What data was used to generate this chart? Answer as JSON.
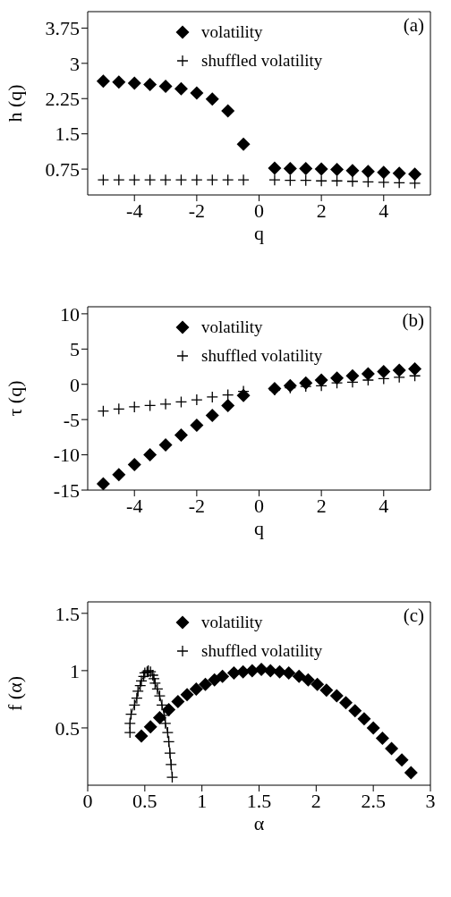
{
  "chart_data": [
    {
      "type": "scatter",
      "xlabel": "q",
      "ylabel": "h (q)",
      "annotations": [
        "(a)"
      ],
      "legend": "top",
      "xlim": [
        -5.5,
        5.5
      ],
      "xticks": [
        -4,
        -2,
        0,
        2,
        4
      ],
      "ylim": [
        0.2,
        4.1
      ],
      "yticks": [
        0.75,
        1.5,
        2.25,
        3,
        3.75
      ],
      "series": [
        {
          "name": "volatility",
          "color": "#000000",
          "marker": "diamond",
          "x": [
            -5,
            -4.5,
            -4,
            -3.5,
            -3,
            -2.5,
            -2,
            -1.5,
            -1,
            -0.5,
            0.5,
            1,
            1.5,
            2,
            2.5,
            3,
            3.5,
            4,
            4.5,
            5
          ],
          "values": [
            2.62,
            2.6,
            2.58,
            2.55,
            2.51,
            2.46,
            2.37,
            2.24,
            1.99,
            1.28,
            0.77,
            0.76,
            0.76,
            0.75,
            0.74,
            0.72,
            0.7,
            0.68,
            0.66,
            0.64
          ]
        },
        {
          "name": "shuffled volatility",
          "color": "#000000",
          "marker": "cross",
          "x": [
            -5,
            -4.5,
            -4,
            -3.5,
            -3,
            -2.5,
            -2,
            -1.5,
            -1,
            -0.5,
            0.5,
            1,
            1.5,
            2,
            2.5,
            3,
            3.5,
            4,
            4.5,
            5
          ],
          "values": [
            0.52,
            0.52,
            0.52,
            0.52,
            0.52,
            0.52,
            0.52,
            0.52,
            0.52,
            0.52,
            0.52,
            0.51,
            0.51,
            0.5,
            0.5,
            0.49,
            0.48,
            0.47,
            0.46,
            0.45
          ]
        }
      ]
    },
    {
      "type": "scatter",
      "xlabel": "q",
      "ylabel": "τ (q)",
      "annotations": [
        "(b)"
      ],
      "legend": "top",
      "xlim": [
        -5.5,
        5.5
      ],
      "xticks": [
        -4,
        -2,
        0,
        2,
        4
      ],
      "ylim": [
        -15,
        11
      ],
      "yticks": [
        -15,
        -10,
        -5,
        0,
        5,
        10
      ],
      "series": [
        {
          "name": "volatility",
          "color": "#000000",
          "marker": "diamond",
          "x": [
            -5,
            -4.5,
            -4,
            -3.5,
            -3,
            -2.5,
            -2,
            -1.5,
            -1,
            -0.5,
            0.5,
            1,
            1.5,
            2,
            2.5,
            3,
            3.5,
            4,
            4.5,
            5
          ],
          "values": [
            -14.1,
            -12.8,
            -11.4,
            -10.0,
            -8.6,
            -7.2,
            -5.8,
            -4.4,
            -3.0,
            -1.6,
            -0.6,
            -0.2,
            0.2,
            0.6,
            0.9,
            1.2,
            1.5,
            1.8,
            2.0,
            2.2
          ]
        },
        {
          "name": "shuffled volatility",
          "color": "#000000",
          "marker": "cross",
          "x": [
            -5,
            -4.5,
            -4,
            -3.5,
            -3,
            -2.5,
            -2,
            -1.5,
            -1,
            -0.5,
            0.5,
            1,
            1.5,
            2,
            2.5,
            3,
            3.5,
            4,
            4.5,
            5
          ],
          "values": [
            -3.8,
            -3.5,
            -3.2,
            -3.0,
            -2.8,
            -2.5,
            -2.2,
            -1.8,
            -1.5,
            -1.0,
            -0.8,
            -0.5,
            -0.3,
            -0.2,
            0.2,
            0.3,
            0.6,
            0.8,
            1.0,
            1.2
          ]
        }
      ]
    },
    {
      "type": "scatter",
      "xlabel": "α",
      "ylabel": "f (α)",
      "annotations": [
        "(c)"
      ],
      "legend": "top",
      "xlim": [
        0,
        3
      ],
      "xticks": [
        0,
        0.5,
        1,
        1.5,
        2,
        2.5,
        3
      ],
      "ylim": [
        0,
        1.6
      ],
      "yticks": [
        0.5,
        1,
        1.5
      ],
      "series": [
        {
          "name": "volatility",
          "color": "#000000",
          "marker": "diamond",
          "x": [
            0.47,
            0.55,
            0.63,
            0.71,
            0.79,
            0.87,
            0.95,
            1.03,
            1.11,
            1.18,
            1.28,
            1.36,
            1.44,
            1.52,
            1.6,
            1.68,
            1.76,
            1.85,
            1.93,
            2.01,
            2.09,
            2.18,
            2.26,
            2.34,
            2.42,
            2.5,
            2.58,
            2.66,
            2.75,
            2.83
          ],
          "values": [
            0.43,
            0.51,
            0.59,
            0.66,
            0.73,
            0.79,
            0.84,
            0.88,
            0.92,
            0.95,
            0.98,
            0.99,
            1.0,
            1.01,
            1.0,
            0.99,
            0.98,
            0.95,
            0.92,
            0.88,
            0.83,
            0.78,
            0.72,
            0.65,
            0.58,
            0.5,
            0.41,
            0.32,
            0.22,
            0.11
          ]
        },
        {
          "name": "shuffled volatility",
          "type": "line",
          "color": "#000000",
          "marker": "cross",
          "x": [
            0.37,
            0.37,
            0.38,
            0.41,
            0.43,
            0.44,
            0.46,
            0.47,
            0.49,
            0.5,
            0.52,
            0.53,
            0.55,
            0.57,
            0.58,
            0.59,
            0.61,
            0.63,
            0.65,
            0.67,
            0.68,
            0.7,
            0.71,
            0.72,
            0.73,
            0.74
          ],
          "values": [
            0.46,
            0.54,
            0.62,
            0.7,
            0.76,
            0.82,
            0.87,
            0.91,
            0.95,
            0.98,
            0.99,
            1.0,
            0.99,
            0.96,
            0.93,
            0.89,
            0.84,
            0.78,
            0.7,
            0.61,
            0.54,
            0.46,
            0.38,
            0.28,
            0.18,
            0.07
          ]
        }
      ]
    }
  ]
}
